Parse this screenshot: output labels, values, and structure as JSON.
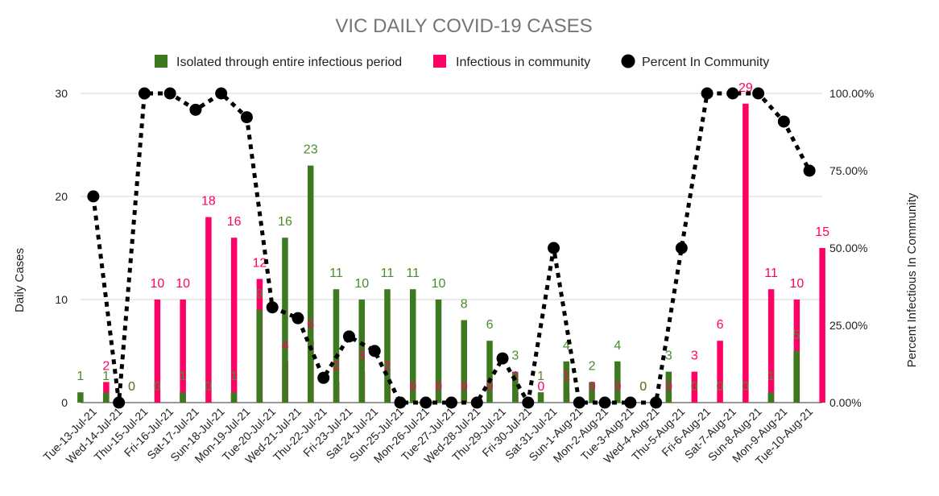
{
  "chart_data": {
    "type": "bar",
    "title": "VIC DAILY COVID-19 CASES",
    "ylabel": "Daily Cases",
    "y2label": "Percent Infectious In Community",
    "ylim": [
      0,
      30
    ],
    "y2lim": [
      0,
      100
    ],
    "yticks": [
      "0",
      "10",
      "20",
      "30"
    ],
    "y2ticks": [
      "0.00%",
      "25.00%",
      "50.00%",
      "75.00%",
      "100.00%"
    ],
    "legend_position": "top",
    "grid": true,
    "categories": [
      "Tue-13-Jul-21",
      "Wed-14-Jul-21",
      "Thu-15-Jul-21",
      "Fri-16-Jul-21",
      "Sat-17-Jul-21",
      "Sun-18-Jul-21",
      "Mon-19-Jul-21",
      "Tue-20-Jul-21",
      "Wed-21-Jul-21",
      "Thu-22-Jul-21",
      "Fri-23-Jul-21",
      "Sat-24-Jul-21",
      "Sun-25-Jul-21",
      "Mon-26-Jul-21",
      "Tue-27-Jul-21",
      "Wed-28-Jul-21",
      "Thu-29-Jul-21",
      "Fri-30-Jul-21",
      "Sat-31-Jul-21",
      "Sun-1-Aug-21",
      "Mon-2-Aug-21",
      "Tue-3-Aug-21",
      "Wed-4-Aug-21",
      "Thu-5-Aug-21",
      "Fri-6-Aug-21",
      "Sat-7-Aug-21",
      "Sun-8-Aug-21",
      "Mon-9-Aug-21",
      "Tue-10-Aug-21"
    ],
    "series": [
      {
        "name": "Isolated through entire infectious period",
        "color": "#3d7a1f",
        "axis": "left",
        "values": [
          1,
          1,
          0,
          0,
          1,
          0,
          1,
          9,
          16,
          23,
          11,
          10,
          11,
          11,
          10,
          8,
          6,
          3,
          1,
          4,
          2,
          4,
          0,
          3,
          0,
          0,
          0,
          1,
          5
        ]
      },
      {
        "name": "Infectious in community",
        "color": "#ff0066",
        "axis": "left",
        "values": [
          2,
          0,
          10,
          10,
          18,
          16,
          12,
          4,
          6,
          2,
          3,
          2,
          0,
          0,
          0,
          0,
          1,
          0,
          1,
          0,
          0,
          0,
          0,
          3,
          6,
          29,
          11,
          10,
          15
        ]
      },
      {
        "name": "Percent In Community",
        "color": "#000000",
        "axis": "right",
        "style": "dotted-line-markers",
        "values": [
          66.7,
          0,
          100,
          100,
          94.7,
          100,
          92.3,
          30.8,
          27.3,
          8,
          21.4,
          16.7,
          0,
          0,
          0,
          0,
          14.3,
          0,
          50,
          0,
          0,
          0,
          0,
          50,
          100,
          100,
          100,
          90.9,
          75
        ]
      }
    ]
  }
}
